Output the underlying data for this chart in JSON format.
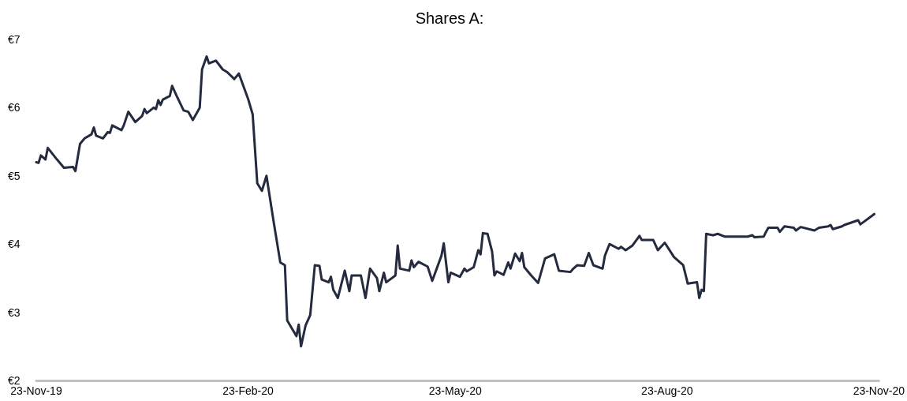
{
  "chart_data": {
    "type": "line",
    "title": "Shares A:",
    "x": [
      "2019-11-23",
      "2019-11-24",
      "2019-11-25",
      "2019-11-27",
      "2019-11-28",
      "2019-12-02",
      "2019-12-03",
      "2019-12-05",
      "2019-12-09",
      "2019-12-10",
      "2019-12-12",
      "2019-12-14",
      "2019-12-17",
      "2019-12-18",
      "2019-12-19",
      "2019-12-22",
      "2019-12-24",
      "2019-12-25",
      "2019-12-26",
      "2019-12-30",
      "2019-12-31",
      "2020-01-02",
      "2020-01-05",
      "2020-01-08",
      "2020-01-09",
      "2020-01-10",
      "2020-01-13",
      "2020-01-14",
      "2020-01-15",
      "2020-01-16",
      "2020-01-17",
      "2020-01-20",
      "2020-01-21",
      "2020-01-23",
      "2020-01-26",
      "2020-01-28",
      "2020-01-30",
      "2020-02-02",
      "2020-02-03",
      "2020-02-05",
      "2020-02-06",
      "2020-02-09",
      "2020-02-12",
      "2020-02-14",
      "2020-02-17",
      "2020-02-19",
      "2020-02-23",
      "2020-02-25",
      "2020-02-27",
      "2020-02-29",
      "2020-03-02",
      "2020-03-05",
      "2020-03-08",
      "2020-03-10",
      "2020-03-11",
      "2020-03-15",
      "2020-03-16",
      "2020-03-17",
      "2020-03-19",
      "2020-03-21",
      "2020-03-23",
      "2020-03-25",
      "2020-03-26",
      "2020-03-29",
      "2020-03-30",
      "2020-03-31",
      "2020-04-02",
      "2020-04-05",
      "2020-04-07",
      "2020-04-08",
      "2020-04-12",
      "2020-04-14",
      "2020-04-16",
      "2020-04-19",
      "2020-04-20",
      "2020-04-22",
      "2020-04-23",
      "2020-04-27",
      "2020-04-28",
      "2020-04-29",
      "2020-05-03",
      "2020-05-04",
      "2020-05-05",
      "2020-05-07",
      "2020-05-11",
      "2020-05-13",
      "2020-05-17",
      "2020-05-18",
      "2020-05-20",
      "2020-05-21",
      "2020-05-25",
      "2020-05-27",
      "2020-05-28",
      "2020-05-31",
      "2020-06-02",
      "2020-06-03",
      "2020-06-04",
      "2020-06-06",
      "2020-06-08",
      "2020-06-09",
      "2020-06-10",
      "2020-06-13",
      "2020-06-15",
      "2020-06-16",
      "2020-06-18",
      "2020-06-20",
      "2020-06-21",
      "2020-06-22",
      "2020-06-25",
      "2020-06-28",
      "2020-07-01",
      "2020-07-05",
      "2020-07-07",
      "2020-07-12",
      "2020-07-13",
      "2020-07-15",
      "2020-07-18",
      "2020-07-20",
      "2020-07-22",
      "2020-07-26",
      "2020-07-27",
      "2020-07-29",
      "2020-08-02",
      "2020-08-03",
      "2020-08-05",
      "2020-08-08",
      "2020-08-11",
      "2020-08-12",
      "2020-08-17",
      "2020-08-19",
      "2020-08-22",
      "2020-08-26",
      "2020-08-30",
      "2020-09-01",
      "2020-09-05",
      "2020-09-06",
      "2020-09-07",
      "2020-09-08",
      "2020-09-09",
      "2020-09-12",
      "2020-09-14",
      "2020-09-17",
      "2020-09-27",
      "2020-09-29",
      "2020-09-30",
      "2020-10-04",
      "2020-10-05",
      "2020-10-06",
      "2020-10-10",
      "2020-10-11",
      "2020-10-13",
      "2020-10-17",
      "2020-10-18",
      "2020-10-20",
      "2020-10-26",
      "2020-10-28",
      "2020-11-01",
      "2020-11-02",
      "2020-11-03",
      "2020-11-07",
      "2020-11-08",
      "2020-11-14",
      "2020-11-15",
      "2020-11-21"
    ],
    "series": [
      {
        "color": "#252b3f",
        "values": [
          5.2,
          5.19,
          5.3,
          5.24,
          5.41,
          5.24,
          5.2,
          5.12,
          5.13,
          5.07,
          5.47,
          5.55,
          5.61,
          5.71,
          5.59,
          5.55,
          5.64,
          5.63,
          5.74,
          5.67,
          5.74,
          5.94,
          5.79,
          5.88,
          5.98,
          5.92,
          6.0,
          5.98,
          6.11,
          6.04,
          6.12,
          6.17,
          6.32,
          6.17,
          5.96,
          5.94,
          5.82,
          6.0,
          6.56,
          6.75,
          6.65,
          6.69,
          6.56,
          6.52,
          6.42,
          6.5,
          6.13,
          5.9,
          4.89,
          4.78,
          5.0,
          4.35,
          3.73,
          3.69,
          2.88,
          2.65,
          2.82,
          2.5,
          2.81,
          2.96,
          3.69,
          3.68,
          3.48,
          3.44,
          3.52,
          3.33,
          3.21,
          3.61,
          3.31,
          3.54,
          3.54,
          3.21,
          3.64,
          3.5,
          3.31,
          3.58,
          3.44,
          3.54,
          3.98,
          3.64,
          3.61,
          3.76,
          3.66,
          3.74,
          3.67,
          3.46,
          3.83,
          4.01,
          3.44,
          3.58,
          3.52,
          3.64,
          3.6,
          3.66,
          3.91,
          3.85,
          4.16,
          4.15,
          3.89,
          3.54,
          3.6,
          3.55,
          3.73,
          3.64,
          3.86,
          3.75,
          3.87,
          3.66,
          3.54,
          3.43,
          3.79,
          3.85,
          3.61,
          3.59,
          3.63,
          3.69,
          3.68,
          3.87,
          3.69,
          3.64,
          3.83,
          4.0,
          3.93,
          3.96,
          3.91,
          3.98,
          4.12,
          4.06,
          4.06,
          3.91,
          4.02,
          3.81,
          3.69,
          3.42,
          3.44,
          3.21,
          3.33,
          3.31,
          4.15,
          4.13,
          4.15,
          4.11,
          4.11,
          4.13,
          4.1,
          4.11,
          4.18,
          4.24,
          4.24,
          4.18,
          4.26,
          4.24,
          4.2,
          4.25,
          4.2,
          4.24,
          4.26,
          4.28,
          4.22,
          4.26,
          4.28,
          4.35,
          4.29,
          4.44
        ]
      }
    ],
    "xlim": [
      "2019-11-23",
      "2020-11-23"
    ],
    "xticks": [
      {
        "value": "2019-11-23",
        "label": "23-Nov-19"
      },
      {
        "value": "2020-02-23",
        "label": "23-Feb-20"
      },
      {
        "value": "2020-05-23",
        "label": "23-May-20"
      },
      {
        "value": "2020-08-23",
        "label": "23-Aug-20"
      },
      {
        "value": "2020-11-23",
        "label": "23-Nov-20"
      }
    ],
    "ylim": [
      2,
      7
    ],
    "yticks": [
      {
        "value": 2,
        "label": "€2"
      },
      {
        "value": 3,
        "label": "€3"
      },
      {
        "value": 4,
        "label": "€4"
      },
      {
        "value": 5,
        "label": "€5"
      },
      {
        "value": 6,
        "label": "€6"
      },
      {
        "value": 7,
        "label": "€7"
      }
    ],
    "marker": "none",
    "line_style": "solid",
    "grid": false
  }
}
